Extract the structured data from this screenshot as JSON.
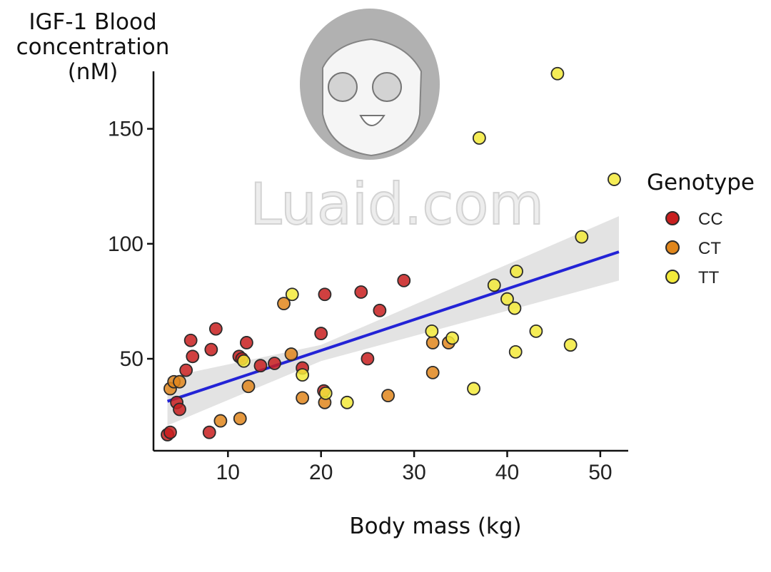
{
  "chart_data": {
    "type": "scatter",
    "title": "",
    "ylabel_lines": [
      "IGF-1 Blood",
      "concentration",
      "(nM)"
    ],
    "xlabel": "Body mass (kg)",
    "xlim": [
      2,
      53
    ],
    "ylim": [
      10,
      175
    ],
    "x_ticks": [
      10,
      20,
      30,
      40,
      50
    ],
    "y_ticks": [
      50,
      100,
      150
    ],
    "grid": false,
    "legend": {
      "title": "Genotype",
      "placement": "right",
      "entries": [
        {
          "label": "CC",
          "color": "#c81e1e"
        },
        {
          "label": "CT",
          "color": "#e0861c"
        },
        {
          "label": "TT",
          "color": "#f3ea3a"
        }
      ]
    },
    "series": [
      {
        "name": "CC",
        "color": "#c81e1e",
        "points": [
          [
            3.5,
            17
          ],
          [
            3.8,
            18
          ],
          [
            4.5,
            31
          ],
          [
            4.8,
            28
          ],
          [
            5.5,
            45
          ],
          [
            6,
            58
          ],
          [
            6.2,
            51
          ],
          [
            8,
            18
          ],
          [
            8.2,
            54
          ],
          [
            8.7,
            63
          ],
          [
            11.2,
            51
          ],
          [
            11.5,
            50
          ],
          [
            12,
            57
          ],
          [
            13.5,
            47
          ],
          [
            15,
            48
          ],
          [
            18,
            46
          ],
          [
            20,
            61
          ],
          [
            20.3,
            36
          ],
          [
            20.4,
            78
          ],
          [
            24.3,
            79
          ],
          [
            25,
            50
          ],
          [
            26.3,
            71
          ],
          [
            28.9,
            84
          ]
        ]
      },
      {
        "name": "CT",
        "color": "#e0861c",
        "points": [
          [
            3.8,
            37
          ],
          [
            4.2,
            40
          ],
          [
            4.8,
            40
          ],
          [
            9.2,
            23
          ],
          [
            11.3,
            24
          ],
          [
            12.2,
            38
          ],
          [
            16,
            74
          ],
          [
            16.8,
            52
          ],
          [
            18,
            33
          ],
          [
            20.4,
            31
          ],
          [
            27.2,
            34
          ],
          [
            32,
            44
          ],
          [
            32,
            57
          ],
          [
            33.7,
            57
          ]
        ]
      },
      {
        "name": "TT",
        "color": "#f3ea3a",
        "points": [
          [
            11.7,
            49
          ],
          [
            16.9,
            78
          ],
          [
            18,
            43
          ],
          [
            20.5,
            35
          ],
          [
            22.8,
            31
          ],
          [
            31.9,
            62
          ],
          [
            34.1,
            59
          ],
          [
            36.4,
            37
          ],
          [
            37,
            146
          ],
          [
            38.6,
            82
          ],
          [
            40,
            76
          ],
          [
            40.8,
            72
          ],
          [
            40.9,
            53
          ],
          [
            41,
            88
          ],
          [
            43.1,
            62
          ],
          [
            45.4,
            174
          ],
          [
            46.8,
            56
          ],
          [
            48,
            103
          ],
          [
            51.5,
            128
          ]
        ]
      }
    ],
    "trendline": {
      "color": "#2323d6",
      "x": [
        3.5,
        52
      ],
      "y": [
        31.5,
        96.5
      ],
      "ci_lower": [
        [
          3.5,
          21
        ],
        [
          20,
          49
        ],
        [
          52,
          84
        ]
      ],
      "ci_upper": [
        [
          3.5,
          42
        ],
        [
          20,
          56
        ],
        [
          52,
          112
        ]
      ]
    }
  },
  "watermark": {
    "text": "Luaid.com"
  }
}
